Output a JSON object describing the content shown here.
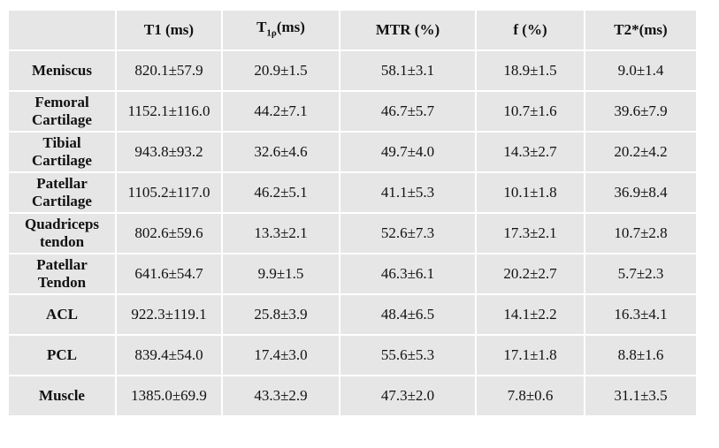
{
  "table": {
    "headers": [
      "",
      "T1 (ms)",
      {
        "base": "T",
        "sub": "1ρ",
        "suffix": "(ms)"
      },
      "MTR (%)",
      "f (%)",
      "T2*(ms)"
    ],
    "rows": [
      [
        "Meniscus",
        "820.1±57.9",
        "20.9±1.5",
        "58.1±3.1",
        "18.9±1.5",
        "9.0±1.4"
      ],
      [
        "Femoral Cartilage",
        "1152.1±116.0",
        "44.2±7.1",
        "46.7±5.7",
        "10.7±1.6",
        "39.6±7.9"
      ],
      [
        "Tibial Cartilage",
        "943.8±93.2",
        "32.6±4.6",
        "49.7±4.0",
        "14.3±2.7",
        "20.2±4.2"
      ],
      [
        "Patellar Cartilage",
        "1105.2±117.0",
        "46.2±5.1",
        "41.1±5.3",
        "10.1±1.8",
        "36.9±8.4"
      ],
      [
        "Quadriceps tendon",
        "802.6±59.6",
        "13.3±2.1",
        "52.6±7.3",
        "17.3±2.1",
        "10.7±2.8"
      ],
      [
        "Patellar Tendon",
        "641.6±54.7",
        "9.9±1.5",
        "46.3±6.1",
        "20.2±2.7",
        "5.7±2.3"
      ],
      [
        "ACL",
        "922.3±119.1",
        "25.8±3.9",
        "48.4±6.5",
        "14.1±2.2",
        "16.3±4.1"
      ],
      [
        "PCL",
        "839.4±54.0",
        "17.4±3.0",
        "55.6±5.3",
        "17.1±1.8",
        "8.8±1.6"
      ],
      [
        "Muscle",
        "1385.0±69.9",
        "43.3±2.9",
        "47.3±2.0",
        "7.8±0.6",
        "31.1±3.5"
      ]
    ]
  }
}
